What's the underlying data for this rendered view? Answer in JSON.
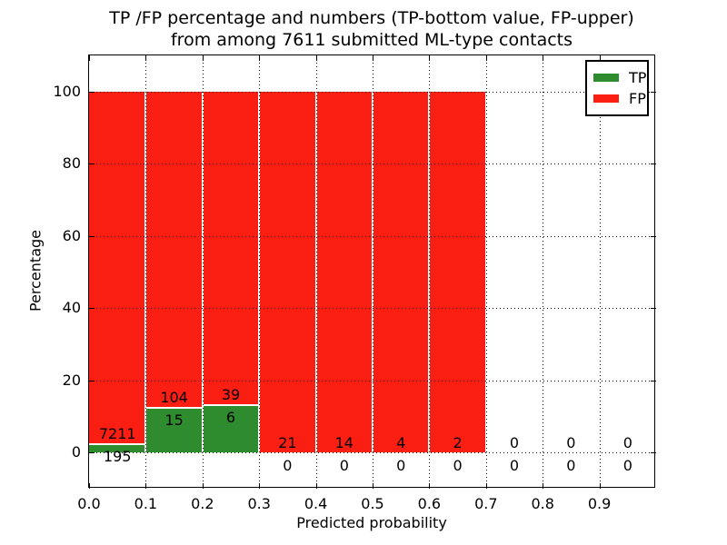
{
  "figure": {
    "title_line1": "TP /FP percentage and numbers (TP-bottom value, FP-upper)",
    "title_line2": "from among 7611 submitted ML-type contacts",
    "xlabel": "Predicted probability",
    "ylabel": "Percentage"
  },
  "chart_data": {
    "type": "bar",
    "stacked": true,
    "title": "TP /FP percentage and numbers (TP-bottom value, FP-upper) from among 7611 submitted ML-type contacts",
    "xlabel": "Predicted probability",
    "ylabel": "Percentage",
    "xlim": [
      0.0,
      1.0
    ],
    "ylim": [
      -10,
      110
    ],
    "grid": true,
    "grid_style": "dotted",
    "legend_position": "upper right",
    "total_contacts": 7611,
    "bin_width": 0.1,
    "x_ticks": [
      {
        "value": 0.0,
        "label": "0.0"
      },
      {
        "value": 0.1,
        "label": "0.1"
      },
      {
        "value": 0.2,
        "label": "0.2"
      },
      {
        "value": 0.3,
        "label": "0.3"
      },
      {
        "value": 0.4,
        "label": "0.4"
      },
      {
        "value": 0.5,
        "label": "0.5"
      },
      {
        "value": 0.6,
        "label": "0.6"
      },
      {
        "value": 0.7,
        "label": "0.7"
      },
      {
        "value": 0.8,
        "label": "0.8"
      },
      {
        "value": 0.9,
        "label": "0.9"
      }
    ],
    "y_ticks": [
      {
        "value": 0,
        "label": "0"
      },
      {
        "value": 20,
        "label": "20"
      },
      {
        "value": 40,
        "label": "40"
      },
      {
        "value": 60,
        "label": "60"
      },
      {
        "value": 80,
        "label": "80"
      },
      {
        "value": 100,
        "label": "100"
      }
    ],
    "series": [
      {
        "name": "TP",
        "color": "#2e8b2e",
        "counts": [
          195,
          15,
          6,
          0,
          0,
          0,
          0,
          0,
          0,
          0
        ]
      },
      {
        "name": "FP",
        "color": "#fb1e13",
        "counts": [
          7211,
          104,
          39,
          21,
          14,
          4,
          2,
          0,
          0,
          0
        ]
      }
    ],
    "bins": [
      {
        "range_start": 0.0,
        "tp": 195,
        "fp": 7211,
        "tp_pct": 2.63,
        "fp_pct": 97.37,
        "has_bar": true
      },
      {
        "range_start": 0.1,
        "tp": 15,
        "fp": 104,
        "tp_pct": 12.61,
        "fp_pct": 87.39,
        "has_bar": true
      },
      {
        "range_start": 0.2,
        "tp": 6,
        "fp": 39,
        "tp_pct": 13.33,
        "fp_pct": 86.67,
        "has_bar": true
      },
      {
        "range_start": 0.3,
        "tp": 0,
        "fp": 21,
        "tp_pct": 0,
        "fp_pct": 100,
        "has_bar": true
      },
      {
        "range_start": 0.4,
        "tp": 0,
        "fp": 14,
        "tp_pct": 0,
        "fp_pct": 100,
        "has_bar": true
      },
      {
        "range_start": 0.5,
        "tp": 0,
        "fp": 4,
        "tp_pct": 0,
        "fp_pct": 100,
        "has_bar": true
      },
      {
        "range_start": 0.6,
        "tp": 0,
        "fp": 2,
        "tp_pct": 0,
        "fp_pct": 100,
        "has_bar": true
      },
      {
        "range_start": 0.7,
        "tp": 0,
        "fp": 0,
        "tp_pct": 0,
        "fp_pct": 0,
        "has_bar": false
      },
      {
        "range_start": 0.8,
        "tp": 0,
        "fp": 0,
        "tp_pct": 0,
        "fp_pct": 0,
        "has_bar": false
      },
      {
        "range_start": 0.9,
        "tp": 0,
        "fp": 0,
        "tp_pct": 0,
        "fp_pct": 0,
        "has_bar": false
      }
    ],
    "colors": {
      "tp": "#2e8b2e",
      "fp": "#fb1e13",
      "grid": "#000000",
      "background": "#ffffff"
    }
  }
}
